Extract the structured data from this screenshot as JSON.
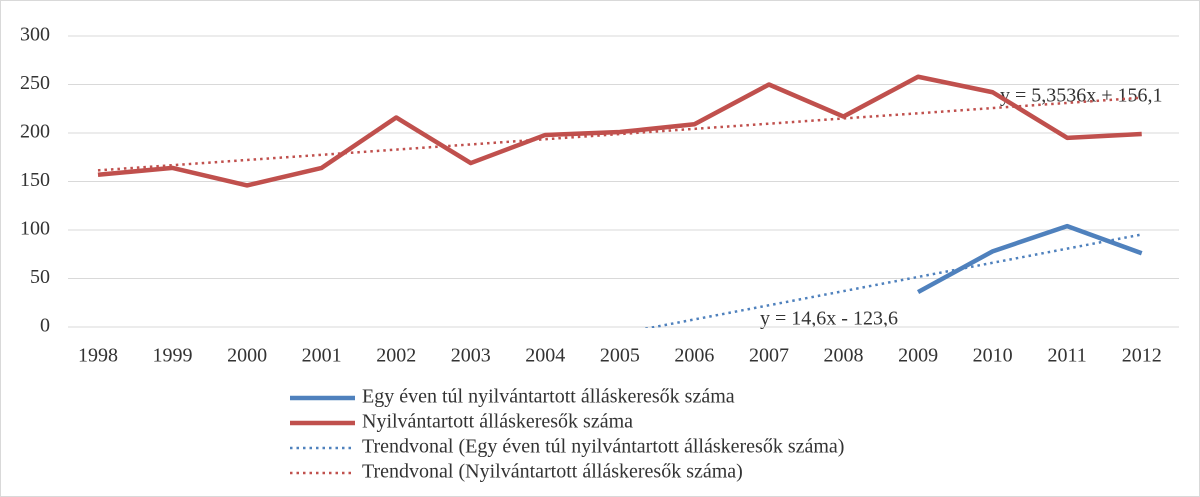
{
  "chart_data": {
    "type": "line",
    "categories": [
      "1998",
      "1999",
      "2000",
      "2001",
      "2002",
      "2003",
      "2004",
      "2005",
      "2006",
      "2007",
      "2008",
      "2009",
      "2010",
      "2011",
      "2012"
    ],
    "series": [
      {
        "name": "Egy éven túl nyilvántartott álláskeresők száma",
        "color": "#4f81bd",
        "linestyle": "solid",
        "values": [
          null,
          null,
          null,
          null,
          null,
          null,
          null,
          null,
          null,
          null,
          null,
          36,
          78,
          104,
          76
        ]
      },
      {
        "name": "Nyilvántartott álláskeresők száma",
        "color": "#c0504d",
        "linestyle": "solid",
        "values": [
          157,
          164,
          146,
          164,
          216,
          169,
          198,
          201,
          209,
          250,
          217,
          258,
          242,
          195,
          199
        ]
      },
      {
        "name": "Trendvonal (Egy éven túl nyilvántartott álláskeresők száma)",
        "color": "#4f81bd",
        "linestyle": "dotted",
        "values": [
          null,
          null,
          null,
          null,
          null,
          null,
          null,
          -6.8,
          7.8,
          22.4,
          37.0,
          51.6,
          66.2,
          80.8,
          95.4
        ]
      },
      {
        "name": "Trendvonal (Nyilvántartott álláskeresők száma)",
        "color": "#c0504d",
        "linestyle": "dotted",
        "values": [
          161.5,
          166.8,
          172.2,
          177.5,
          182.9,
          188.2,
          193.6,
          198.9,
          204.3,
          209.6,
          215.0,
          220.3,
          225.7,
          231.0,
          236.4
        ]
      }
    ],
    "annotations": [
      "y = 5,3536x + 156,1",
      "y = 14,6x - 123,6"
    ],
    "ylim": [
      0,
      300
    ],
    "yticks": [
      0,
      50,
      100,
      150,
      200,
      250,
      300
    ],
    "grid": true
  }
}
